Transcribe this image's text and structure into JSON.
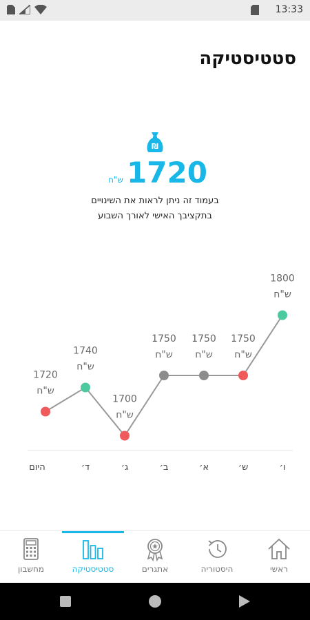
{
  "status_bar": {
    "time": "13:33",
    "icons": [
      "sim-icon",
      "signal-icon",
      "wifi-icon",
      "sd-card-icon",
      "battery-icon"
    ]
  },
  "page": {
    "title": "סטטיסטיקה"
  },
  "summary": {
    "icon": "money-bag-icon",
    "amount": "1720",
    "currency": "ש\"ח",
    "description_line1": "בעמוד זה ניתן לראות את השינויים",
    "description_line2": "בתקציבך האישי לאורך השבוע"
  },
  "chart_data": {
    "type": "line",
    "categories": [
      "היום",
      "ד׳",
      "ג׳",
      "ב׳",
      "א׳",
      "ש׳",
      "ו׳"
    ],
    "values": [
      1720,
      1740,
      1700,
      1750,
      1750,
      1750,
      1800
    ],
    "value_labels": [
      "1720",
      "1740",
      "1700",
      "1750",
      "1750",
      "1750",
      "1800"
    ],
    "unit_label": "ש\"ח",
    "point_colors": [
      "#f05a5a",
      "#4dc9a0",
      "#f05a5a",
      "#8c8c8c",
      "#8c8c8c",
      "#f05a5a",
      "#4dc9a0"
    ],
    "line_color": "#999999",
    "grid": false,
    "legend": "none"
  },
  "bottom_nav": {
    "items": [
      {
        "label": "ראשי",
        "icon": "home-icon",
        "active": false
      },
      {
        "label": "היסטוריה",
        "icon": "history-icon",
        "active": false
      },
      {
        "label": "אתגרים",
        "icon": "award-icon",
        "active": false
      },
      {
        "label": "סטטיסטיקה",
        "icon": "bar-chart-icon",
        "active": true
      },
      {
        "label": "מחשבון",
        "icon": "calculator-icon",
        "active": false
      }
    ]
  },
  "system_nav": {
    "buttons": [
      "recents-button",
      "home-button",
      "back-button"
    ]
  },
  "colors": {
    "accent": "#19b7e8",
    "up": "#4dc9a0",
    "down": "#f05a5a",
    "flat": "#8c8c8c"
  }
}
